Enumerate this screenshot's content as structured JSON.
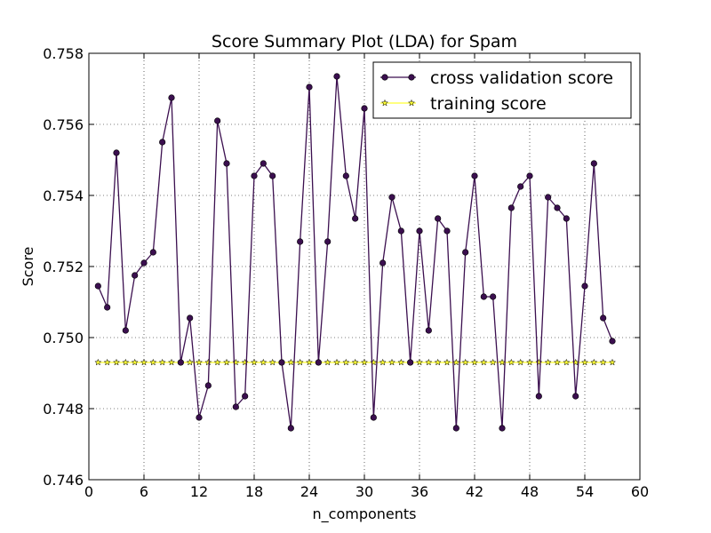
{
  "chart_data": {
    "type": "line",
    "title": "Score Summary Plot (LDA) for Spam",
    "xlabel": "n_components",
    "ylabel": "Score",
    "xlim": [
      0,
      60
    ],
    "ylim": [
      0.746,
      0.758
    ],
    "xticks": [
      0,
      6,
      12,
      18,
      24,
      30,
      36,
      42,
      48,
      54,
      60
    ],
    "xtick_labels": [
      "0",
      "6",
      "12",
      "18",
      "24",
      "30",
      "36",
      "42",
      "48",
      "54",
      "60"
    ],
    "yticks": [
      0.746,
      0.748,
      0.75,
      0.752,
      0.754,
      0.756,
      0.758
    ],
    "ytick_labels": [
      "0.746",
      "0.748",
      "0.750",
      "0.752",
      "0.754",
      "0.756",
      "0.758"
    ],
    "grid": true,
    "legend_position": "top-right",
    "x": [
      1,
      2,
      3,
      4,
      5,
      6,
      7,
      8,
      9,
      10,
      11,
      12,
      13,
      14,
      15,
      16,
      17,
      18,
      19,
      20,
      21,
      22,
      23,
      24,
      25,
      26,
      27,
      28,
      29,
      30,
      31,
      32,
      33,
      34,
      35,
      36,
      37,
      38,
      39,
      40,
      41,
      42,
      43,
      44,
      45,
      46,
      47,
      48,
      49,
      50,
      51,
      52,
      53,
      54,
      55,
      56,
      57
    ],
    "series": [
      {
        "name": "cross validation score",
        "color": "#3b0f4f",
        "marker": "circle",
        "values": [
          0.75145,
          0.75085,
          0.7552,
          0.7502,
          0.75175,
          0.7521,
          0.7524,
          0.7555,
          0.75675,
          0.7493,
          0.75055,
          0.74775,
          0.74865,
          0.7561,
          0.7549,
          0.74805,
          0.74835,
          0.75455,
          0.7549,
          0.75455,
          0.7493,
          0.74745,
          0.7527,
          0.75705,
          0.7493,
          0.7527,
          0.75735,
          0.75455,
          0.75335,
          0.75645,
          0.74775,
          0.7521,
          0.75395,
          0.753,
          0.7493,
          0.753,
          0.7502,
          0.75335,
          0.753,
          0.74745,
          0.7524,
          0.75455,
          0.75115,
          0.75115,
          0.74745,
          0.75365,
          0.75425,
          0.75455,
          0.74835,
          0.75395,
          0.75365,
          0.75335,
          0.74835,
          0.75145,
          0.7549,
          0.75055,
          0.7499
        ]
      },
      {
        "name": "training score",
        "color": "#ffff33",
        "marker": "star",
        "values": [
          0.7493,
          0.7493,
          0.7493,
          0.7493,
          0.7493,
          0.7493,
          0.7493,
          0.7493,
          0.7493,
          0.7493,
          0.7493,
          0.7493,
          0.7493,
          0.7493,
          0.7493,
          0.7493,
          0.7493,
          0.7493,
          0.7493,
          0.7493,
          0.7493,
          0.7493,
          0.7493,
          0.7493,
          0.7493,
          0.7493,
          0.7493,
          0.7493,
          0.7493,
          0.7493,
          0.7493,
          0.7493,
          0.7493,
          0.7493,
          0.7493,
          0.7493,
          0.7493,
          0.7493,
          0.7493,
          0.7493,
          0.7493,
          0.7493,
          0.7493,
          0.7493,
          0.7493,
          0.7493,
          0.7493,
          0.7493,
          0.7493,
          0.7493,
          0.7493,
          0.7493,
          0.7493,
          0.7493,
          0.7493,
          0.7493,
          0.7493
        ]
      }
    ]
  }
}
